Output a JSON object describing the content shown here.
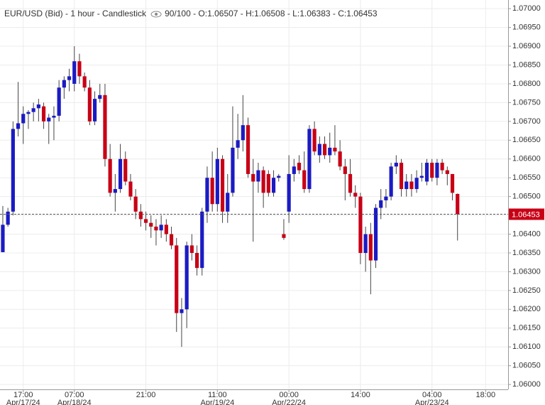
{
  "chart_data": {
    "type": "candlestick",
    "title": "EUR/USD (Bid) - 1 hour - Candlestick",
    "info": "90/100 - O:1.06507 - H:1.06508 - L:1.06383 - C:1.06453",
    "up_color": "#1b1bc4",
    "down_color": "#c80016",
    "open": [
      1.06352,
      1.06425,
      1.0646,
      1.0668,
      1.06695,
      1.0672,
      1.06725,
      1.06735,
      1.0674,
      1.067,
      1.0671,
      1.06715,
      1.0679,
      1.0681,
      1.068,
      1.0686,
      1.0682,
      1.0679,
      1.067,
      1.0676,
      1.0677,
      1.066,
      1.0651,
      1.0652,
      1.066,
      1.0654,
      1.065,
      1.0646,
      1.0644,
      1.0643,
      1.0642,
      1.0641,
      1.06425,
      1.064,
      1.0637,
      1.0619,
      1.062,
      1.0637,
      1.0635,
      1.0631,
      1.0646,
      1.0655,
      1.0648,
      1.066,
      1.0646,
      1.0651,
      1.0663,
      1.0665,
      1.0669,
      1.0656,
      1.0654,
      1.0657,
      1.0656,
      1.0651,
      1.0655,
      1.064,
      1.0646,
      1.0656,
      1.0659,
      1.0657,
      1.0652,
      1.0668,
      1.0661,
      1.0664,
      1.0661,
      1.0663,
      1.0662,
      1.0658,
      1.0656,
      1.0651,
      1.065,
      1.0635,
      1.064,
      1.0633,
      1.0647,
      1.0649,
      1.065,
      1.0658,
      1.0659,
      1.0652,
      1.0654,
      1.0652,
      1.0655,
      1.0654,
      1.0659,
      1.0655,
      1.0659,
      1.0657,
      1.0656,
      1.06507
    ],
    "high": [
      1.06475,
      1.0647,
      1.067,
      1.06805,
      1.0674,
      1.0673,
      1.0675,
      1.0676,
      1.0675,
      1.0672,
      1.0674,
      1.0681,
      1.0682,
      1.0684,
      1.069,
      1.0688,
      1.0683,
      1.0681,
      1.0678,
      1.068,
      1.068,
      1.0664,
      1.0656,
      1.0664,
      1.0662,
      1.0656,
      1.0652,
      1.0648,
      1.0646,
      1.0645,
      1.0644,
      1.0645,
      1.0644,
      1.0642,
      1.0639,
      1.0623,
      1.0638,
      1.064,
      1.0637,
      1.0647,
      1.0658,
      1.0662,
      1.0663,
      1.0661,
      1.0656,
      1.0674,
      1.0672,
      1.0677,
      1.0671,
      1.066,
      1.0659,
      1.0658,
      1.0657,
      1.0657,
      1.0656,
      1.0644,
      1.0661,
      1.066,
      1.0661,
      1.0662,
      1.0669,
      1.067,
      1.0666,
      1.0666,
      1.0667,
      1.0669,
      1.0665,
      1.066,
      1.066,
      1.0653,
      1.0651,
      1.0642,
      1.0643,
      1.0648,
      1.0652,
      1.0652,
      1.0659,
      1.0661,
      1.066,
      1.0656,
      1.0656,
      1.0657,
      1.0659,
      1.066,
      1.066,
      1.066,
      1.066,
      1.0658,
      1.0656,
      1.06508
    ],
    "low": [
      1.06352,
      1.0642,
      1.0645,
      1.0666,
      1.0664,
      1.0668,
      1.067,
      1.067,
      1.0668,
      1.0664,
      1.0665,
      1.067,
      1.0676,
      1.0678,
      1.0678,
      1.068,
      1.0678,
      1.0669,
      1.0669,
      1.0675,
      1.0658,
      1.065,
      1.0646,
      1.0651,
      1.0653,
      1.0649,
      1.0644,
      1.0642,
      1.0641,
      1.0639,
      1.0637,
      1.0639,
      1.0638,
      1.0636,
      1.0614,
      1.061,
      1.0615,
      1.0633,
      1.0629,
      1.0629,
      1.0643,
      1.0646,
      1.0646,
      1.0643,
      1.0643,
      1.065,
      1.066,
      1.0662,
      1.0655,
      1.0638,
      1.0651,
      1.0647,
      1.065,
      1.065,
      1.0654,
      1.06385,
      1.0643,
      1.0654,
      1.0656,
      1.0651,
      1.0651,
      1.0661,
      1.0659,
      1.066,
      1.0659,
      1.0661,
      1.0657,
      1.0649,
      1.065,
      1.0647,
      1.0632,
      1.063,
      1.0624,
      1.0631,
      1.0644,
      1.0647,
      1.0649,
      1.0656,
      1.065,
      1.065,
      1.065,
      1.0651,
      1.0654,
      1.0653,
      1.0654,
      1.0653,
      1.0656,
      1.0653,
      1.0649,
      1.06383
    ],
    "close": [
      1.06425,
      1.0646,
      1.0668,
      1.06695,
      1.0672,
      1.06725,
      1.06735,
      1.06745,
      1.067,
      1.0671,
      1.06715,
      1.0679,
      1.0681,
      1.0682,
      1.0686,
      1.0682,
      1.0679,
      1.067,
      1.0676,
      1.0677,
      1.066,
      1.0651,
      1.0652,
      1.066,
      1.0654,
      1.065,
      1.0646,
      1.0644,
      1.0643,
      1.0642,
      1.0641,
      1.06425,
      1.064,
      1.0637,
      1.0619,
      1.062,
      1.0637,
      1.0635,
      1.0631,
      1.0646,
      1.0655,
      1.0648,
      1.066,
      1.0646,
      1.0651,
      1.0663,
      1.0665,
      1.0669,
      1.0656,
      1.0654,
      1.0657,
      1.0651,
      1.0651,
      1.0655,
      1.06555,
      1.0639,
      1.0656,
      1.0658,
      1.0657,
      1.0652,
      1.0668,
      1.0662,
      1.0664,
      1.0661,
      1.0663,
      1.0662,
      1.0658,
      1.0656,
      1.0651,
      1.065,
      1.0635,
      1.064,
      1.0633,
      1.0647,
      1.0649,
      1.065,
      1.0658,
      1.0659,
      1.0652,
      1.0654,
      1.0652,
      1.0655,
      1.06555,
      1.0659,
      1.0655,
      1.0659,
      1.0657,
      1.0656,
      1.0651,
      1.06453
    ],
    "last_price": 1.06453,
    "xlim": [
      -0.55,
      98.9
    ],
    "xticks": [
      {
        "value": 4,
        "label": "17:00"
      },
      {
        "value": 14,
        "label": "07:00"
      },
      {
        "value": 28,
        "label": "21:00"
      },
      {
        "value": 42,
        "label": "11:00"
      },
      {
        "value": 56,
        "label": "00:00"
      },
      {
        "value": 70,
        "label": "14:00"
      },
      {
        "value": 84,
        "label": "04:00"
      },
      {
        "value": 94.5,
        "label": "18:00"
      }
    ],
    "xtick_dates": [
      "Apr/17/24",
      "Apr/18/24",
      null,
      "Apr/19/24",
      "Apr/22/24",
      null,
      "Apr/23/24",
      null
    ],
    "ylim": [
      1.05987,
      1.07023
    ],
    "yticks": [
      {
        "value": 1.07,
        "label": "1.07000"
      },
      {
        "value": 1.0695,
        "label": "1.06950"
      },
      {
        "value": 1.069,
        "label": "1.06900"
      },
      {
        "value": 1.0685,
        "label": "1.06850"
      },
      {
        "value": 1.068,
        "label": "1.06800"
      },
      {
        "value": 1.0675,
        "label": "1.06750"
      },
      {
        "value": 1.067,
        "label": "1.06700"
      },
      {
        "value": 1.0665,
        "label": "1.06650"
      },
      {
        "value": 1.066,
        "label": "1.06600"
      },
      {
        "value": 1.0655,
        "label": "1.06550"
      },
      {
        "value": 1.065,
        "label": "1.06500"
      },
      {
        "value": 1.0645,
        "label": "1.06450"
      },
      {
        "value": 1.064,
        "label": "1.06400"
      },
      {
        "value": 1.0635,
        "label": "1.06350"
      },
      {
        "value": 1.063,
        "label": "1.06300"
      },
      {
        "value": 1.0625,
        "label": "1.06250"
      },
      {
        "value": 1.062,
        "label": "1.06200"
      },
      {
        "value": 1.0615,
        "label": "1.06150"
      },
      {
        "value": 1.061,
        "label": "1.06100"
      },
      {
        "value": 1.0605,
        "label": "1.06050"
      },
      {
        "value": 1.06,
        "label": "1.06000"
      }
    ],
    "grid": true
  }
}
